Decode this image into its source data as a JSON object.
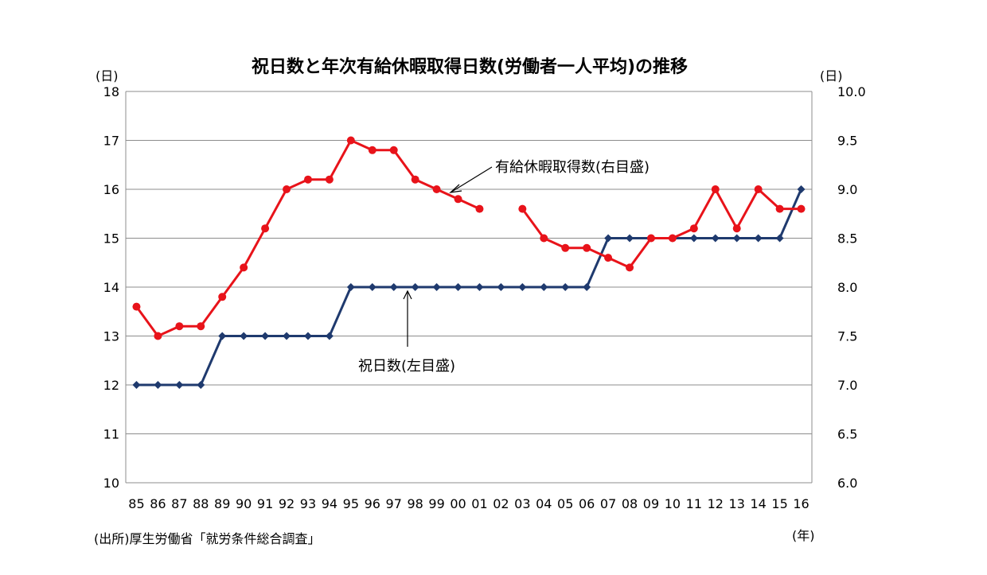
{
  "chart_data": {
    "type": "line",
    "title": "祝日数と年次有給休暇取得日数(労働者一人平均)の推移",
    "ylabel_left": "(日)",
    "ylabel_right": "(日)",
    "xlabel": "(年)",
    "x": [
      "85",
      "86",
      "87",
      "88",
      "89",
      "90",
      "91",
      "92",
      "93",
      "94",
      "95",
      "96",
      "97",
      "98",
      "99",
      "00",
      "01",
      "02",
      "03",
      "04",
      "05",
      "06",
      "07",
      "08",
      "09",
      "10",
      "11",
      "12",
      "13",
      "14",
      "15",
      "16"
    ],
    "ylim_left": [
      10,
      18
    ],
    "yticks_left": [
      "10",
      "11",
      "12",
      "13",
      "14",
      "15",
      "16",
      "17",
      "18"
    ],
    "ylim_right": [
      6.0,
      10.0
    ],
    "yticks_right": [
      "6.0",
      "6.5",
      "7.0",
      "7.5",
      "8.0",
      "8.5",
      "9.0",
      "9.5",
      "10.0"
    ],
    "grid": true,
    "series": [
      {
        "name": "祝日数(左目盛)",
        "axis": "left",
        "color": "#1f3a6e",
        "marker": "diamond",
        "values": [
          12,
          12,
          12,
          12,
          13,
          13,
          13,
          13,
          13,
          13,
          14,
          14,
          14,
          14,
          14,
          14,
          14,
          14,
          14,
          14,
          14,
          14,
          15,
          15,
          15,
          15,
          15,
          15,
          15,
          15,
          15,
          16
        ]
      },
      {
        "name": "有給休暇取得数(右目盛)",
        "axis": "right",
        "color": "#e8131a",
        "marker": "circle",
        "values": [
          7.8,
          7.5,
          7.6,
          7.6,
          7.9,
          8.2,
          8.6,
          9.0,
          9.1,
          9.1,
          9.5,
          9.4,
          9.4,
          9.1,
          9.0,
          8.9,
          8.8,
          null,
          8.8,
          8.5,
          8.4,
          8.4,
          8.3,
          8.2,
          8.5,
          8.5,
          8.6,
          9.0,
          8.6,
          9.0,
          8.8,
          8.8
        ]
      }
    ],
    "source": "(出所)厚生労働省「就労条件総合調査」"
  }
}
